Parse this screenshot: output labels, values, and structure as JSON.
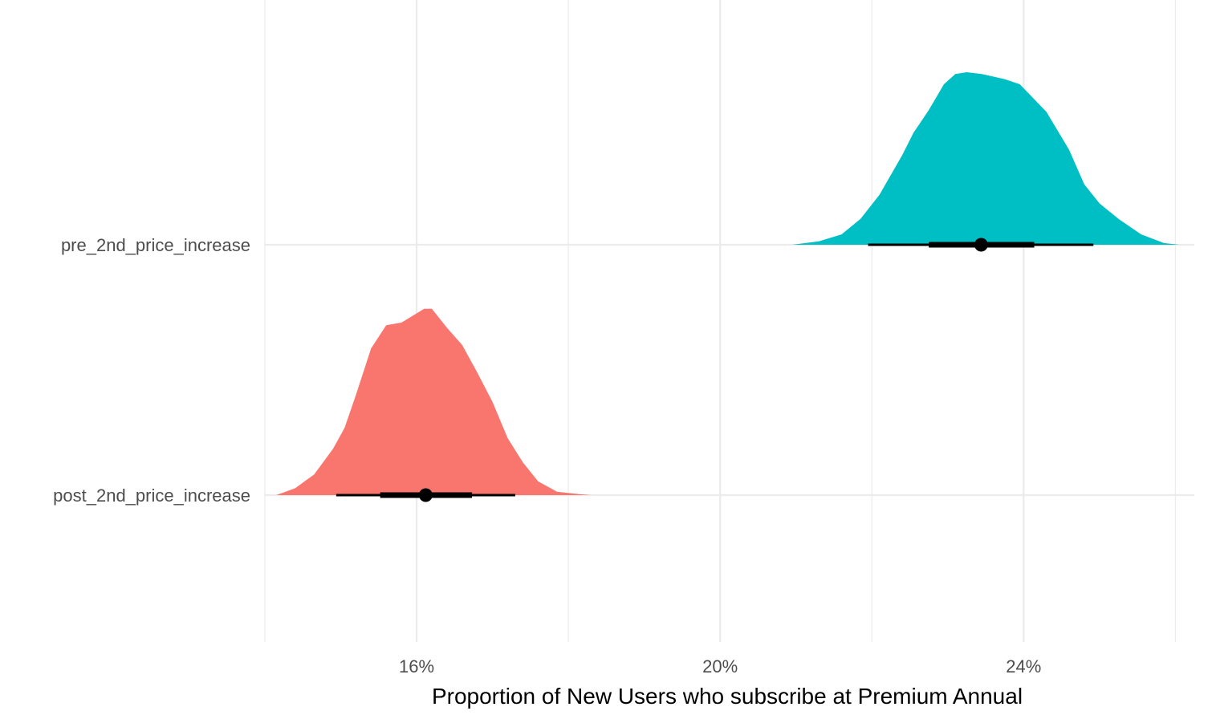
{
  "chart_data": {
    "type": "halfeye",
    "title": "",
    "xlabel": "Proportion of New Users who subscribe at Premium Annual",
    "ylabel": "",
    "xlim": [
      0.14,
      0.2625
    ],
    "x_ticks": [
      0.16,
      0.2,
      0.24
    ],
    "x_tick_labels": [
      "16%",
      "20%",
      "24%"
    ],
    "x_minor_ticks": [
      0.14,
      0.18,
      0.22,
      0.26
    ],
    "grid": true,
    "legend": "none",
    "categories": [
      "post_2nd_price_increase",
      "pre_2nd_price_increase"
    ],
    "series": [
      {
        "category": "post_2nd_price_increase",
        "color": "#F8766D",
        "median": 0.1612,
        "interval_66": [
          0.1552,
          0.1673
        ],
        "interval_95": [
          0.1494,
          0.173
        ],
        "density_x": [
          0.1415,
          0.144,
          0.1465,
          0.149,
          0.1505,
          0.152,
          0.154,
          0.156,
          0.158,
          0.1595,
          0.161,
          0.162,
          0.164,
          0.166,
          0.168,
          0.17,
          0.172,
          0.174,
          0.176,
          0.1785,
          0.1815,
          0.183
        ],
        "density_y": [
          0.0,
          0.04,
          0.12,
          0.27,
          0.39,
          0.58,
          0.85,
          0.985,
          1.0,
          1.04,
          1.08,
          1.08,
          0.97,
          0.87,
          0.71,
          0.54,
          0.33,
          0.19,
          0.08,
          0.02,
          0.005,
          0.0
        ]
      },
      {
        "category": "pre_2nd_price_increase",
        "color": "#00BFC4",
        "median": 0.2344,
        "interval_66": [
          0.2275,
          0.2414
        ],
        "interval_95": [
          0.2195,
          0.2492
        ],
        "density_x": [
          0.2095,
          0.213,
          0.216,
          0.2185,
          0.221,
          0.224,
          0.2255,
          0.2275,
          0.2295,
          0.231,
          0.2325,
          0.2345,
          0.2375,
          0.2395,
          0.243,
          0.246,
          0.248,
          0.25,
          0.2525,
          0.2555,
          0.2585,
          0.2605
        ],
        "density_y": [
          0.0,
          0.02,
          0.06,
          0.15,
          0.29,
          0.52,
          0.65,
          0.78,
          0.93,
          0.99,
          1.0,
          0.99,
          0.96,
          0.93,
          0.77,
          0.55,
          0.35,
          0.24,
          0.15,
          0.06,
          0.01,
          0.0
        ]
      }
    ]
  }
}
